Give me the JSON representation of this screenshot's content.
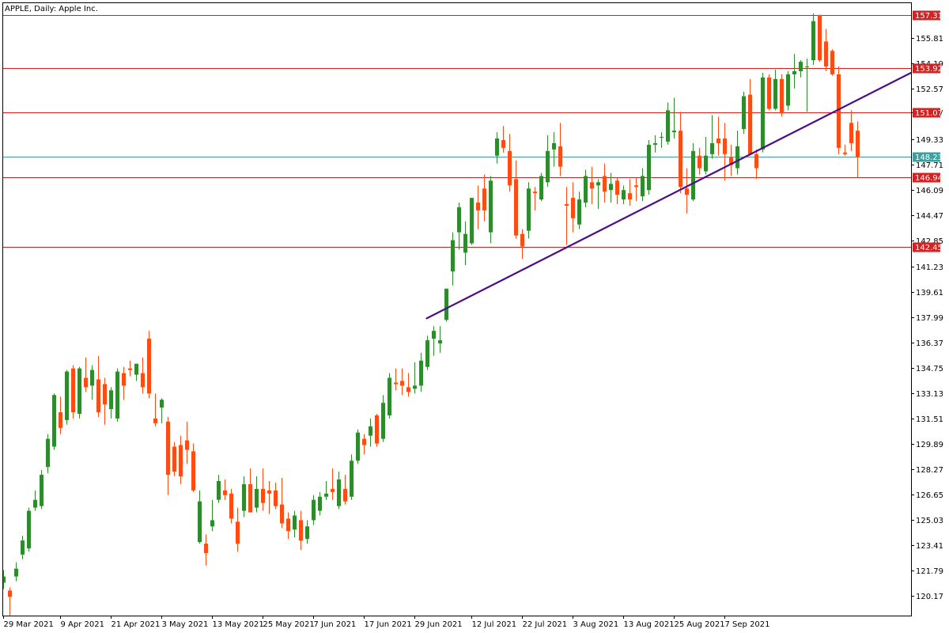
{
  "chart_title": "APPLE, Daily:  Apple Inc.",
  "colors": {
    "bull": "#2e8b2e",
    "bear": "#ff4b14",
    "level": "#d32222",
    "current": "#3f9f9f",
    "trendline": "#4b0f8c",
    "axis": "#000000"
  },
  "chart_data": {
    "type": "candlestick",
    "title": "APPLE, Daily:  Apple Inc.",
    "ylim": [
      118.9,
      158.1
    ],
    "yticks": [
      "155.81",
      "154.19",
      "152.57",
      "151.07",
      "149.33",
      "147.71",
      "146.09",
      "144.47",
      "142.85",
      "141.23",
      "139.61",
      "137.99",
      "136.37",
      "134.75",
      "133.13",
      "131.51",
      "129.89",
      "128.27",
      "126.65",
      "125.03",
      "123.41",
      "121.79",
      "120.17"
    ],
    "xticks": [
      {
        "label": "29 Mar 2021",
        "index": 0
      },
      {
        "label": "9 Apr 2021",
        "index": 9
      },
      {
        "label": "21 Apr 2021",
        "index": 17
      },
      {
        "label": "3 May 2021",
        "index": 25
      },
      {
        "label": "13 May 2021",
        "index": 33
      },
      {
        "label": "25 May 2021",
        "index": 41
      },
      {
        "label": "7 Jun 2021",
        "index": 49
      },
      {
        "label": "17 Jun 2021",
        "index": 57
      },
      {
        "label": "29 Jun 2021",
        "index": 65
      },
      {
        "label": "12 Jul 2021",
        "index": 74
      },
      {
        "label": "22 Jul 2021",
        "index": 82
      },
      {
        "label": "3 Aug 2021",
        "index": 90
      },
      {
        "label": "13 Aug 2021",
        "index": 98
      },
      {
        "label": "25 Aug 2021",
        "index": 106
      },
      {
        "label": "7 Sep 2021",
        "index": 114
      }
    ],
    "levels": [
      {
        "label": "157.31",
        "value": 157.31,
        "kind": "resistance"
      },
      {
        "label": "153.92",
        "value": 153.92,
        "kind": "resistance"
      },
      {
        "label": "151.07",
        "value": 151.07,
        "kind": "resistance"
      },
      {
        "label": "146.94",
        "value": 146.94,
        "kind": "support"
      },
      {
        "label": "142.45",
        "value": 142.45,
        "kind": "support"
      }
    ],
    "current_price": {
      "label": "148.23",
      "value": 148.23
    },
    "trendline": {
      "start": {
        "index": 67,
        "value": 137.9
      },
      "end": {
        "index": 148,
        "value": 153.6
      }
    },
    "candles": [
      {
        "o": 121.0,
        "h": 121.8,
        "l": 120.6,
        "c": 121.4
      },
      {
        "o": 120.5,
        "h": 120.7,
        "l": 118.9,
        "c": 120.1
      },
      {
        "o": 121.4,
        "h": 122.3,
        "l": 121.1,
        "c": 121.9
      },
      {
        "o": 122.8,
        "h": 124.0,
        "l": 122.5,
        "c": 123.7
      },
      {
        "o": 123.2,
        "h": 125.8,
        "l": 123.0,
        "c": 125.6
      },
      {
        "o": 125.8,
        "h": 126.9,
        "l": 125.6,
        "c": 126.3
      },
      {
        "o": 125.9,
        "h": 128.2,
        "l": 125.7,
        "c": 127.9
      },
      {
        "o": 128.4,
        "h": 130.5,
        "l": 128.0,
        "c": 130.2
      },
      {
        "o": 129.7,
        "h": 133.1,
        "l": 129.5,
        "c": 133.0
      },
      {
        "o": 131.9,
        "h": 132.9,
        "l": 130.5,
        "c": 130.9
      },
      {
        "o": 131.4,
        "h": 134.6,
        "l": 131.1,
        "c": 134.5
      },
      {
        "o": 134.7,
        "h": 134.9,
        "l": 131.5,
        "c": 131.9
      },
      {
        "o": 131.8,
        "h": 134.8,
        "l": 131.5,
        "c": 134.7
      },
      {
        "o": 134.1,
        "h": 135.4,
        "l": 133.2,
        "c": 133.5
      },
      {
        "o": 133.6,
        "h": 134.9,
        "l": 132.7,
        "c": 134.6
      },
      {
        "o": 134.0,
        "h": 135.5,
        "l": 131.6,
        "c": 131.9
      },
      {
        "o": 133.7,
        "h": 134.1,
        "l": 131.1,
        "c": 132.4
      },
      {
        "o": 132.1,
        "h": 133.5,
        "l": 131.5,
        "c": 133.3
      },
      {
        "o": 131.5,
        "h": 134.7,
        "l": 131.3,
        "c": 134.5
      },
      {
        "o": 134.4,
        "h": 134.8,
        "l": 132.7,
        "c": 133.6
      },
      {
        "o": 134.7,
        "h": 135.2,
        "l": 134.2,
        "c": 134.6
      },
      {
        "o": 134.3,
        "h": 135.0,
        "l": 133.9,
        "c": 135.0
      },
      {
        "o": 134.4,
        "h": 135.4,
        "l": 133.1,
        "c": 133.5
      },
      {
        "o": 136.6,
        "h": 137.1,
        "l": 132.8,
        "c": 133.1
      },
      {
        "o": 131.5,
        "h": 133.1,
        "l": 131.0,
        "c": 131.2
      },
      {
        "o": 132.2,
        "h": 132.8,
        "l": 131.2,
        "c": 132.7
      },
      {
        "o": 131.3,
        "h": 131.6,
        "l": 126.6,
        "c": 127.9
      },
      {
        "o": 129.7,
        "h": 130.0,
        "l": 127.8,
        "c": 128.1
      },
      {
        "o": 129.8,
        "h": 130.4,
        "l": 127.3,
        "c": 127.8
      },
      {
        "o": 130.1,
        "h": 131.3,
        "l": 128.6,
        "c": 129.5
      },
      {
        "o": 129.4,
        "h": 129.9,
        "l": 126.8,
        "c": 126.9
      },
      {
        "o": 123.6,
        "h": 126.9,
        "l": 123.5,
        "c": 126.2
      },
      {
        "o": 123.5,
        "h": 124.1,
        "l": 122.1,
        "c": 122.9
      },
      {
        "o": 124.6,
        "h": 126.3,
        "l": 124.3,
        "c": 125.0
      },
      {
        "o": 126.3,
        "h": 127.9,
        "l": 126.1,
        "c": 127.5
      },
      {
        "o": 126.9,
        "h": 127.6,
        "l": 126.3,
        "c": 126.6
      },
      {
        "o": 126.7,
        "h": 127.0,
        "l": 124.8,
        "c": 125.1
      },
      {
        "o": 124.9,
        "h": 125.8,
        "l": 123.0,
        "c": 123.5
      },
      {
        "o": 125.6,
        "h": 127.8,
        "l": 125.2,
        "c": 127.3
      },
      {
        "o": 127.3,
        "h": 128.3,
        "l": 125.5,
        "c": 125.5
      },
      {
        "o": 125.8,
        "h": 127.8,
        "l": 125.5,
        "c": 127.0
      },
      {
        "o": 127.0,
        "h": 128.3,
        "l": 125.6,
        "c": 126.1
      },
      {
        "o": 126.9,
        "h": 127.5,
        "l": 125.4,
        "c": 126.7
      },
      {
        "o": 126.9,
        "h": 127.4,
        "l": 125.7,
        "c": 125.9
      },
      {
        "o": 126.0,
        "h": 127.7,
        "l": 124.5,
        "c": 124.8
      },
      {
        "o": 125.1,
        "h": 125.5,
        "l": 123.8,
        "c": 124.3
      },
      {
        "o": 124.4,
        "h": 125.6,
        "l": 123.9,
        "c": 125.3
      },
      {
        "o": 125.0,
        "h": 125.6,
        "l": 123.1,
        "c": 123.7
      },
      {
        "o": 123.8,
        "h": 125.0,
        "l": 123.5,
        "c": 124.6
      },
      {
        "o": 125.0,
        "h": 126.6,
        "l": 124.7,
        "c": 126.3
      },
      {
        "o": 125.6,
        "h": 126.8,
        "l": 125.3,
        "c": 126.5
      },
      {
        "o": 126.5,
        "h": 127.5,
        "l": 126.3,
        "c": 126.7
      },
      {
        "o": 127.0,
        "h": 128.3,
        "l": 126.3,
        "c": 126.8
      },
      {
        "o": 125.9,
        "h": 128.1,
        "l": 125.7,
        "c": 127.6
      },
      {
        "o": 127.0,
        "h": 127.9,
        "l": 126.0,
        "c": 126.2
      },
      {
        "o": 126.5,
        "h": 129.2,
        "l": 126.3,
        "c": 128.8
      },
      {
        "o": 128.8,
        "h": 130.8,
        "l": 128.6,
        "c": 130.6
      },
      {
        "o": 130.2,
        "h": 130.5,
        "l": 129.2,
        "c": 129.8
      },
      {
        "o": 130.4,
        "h": 131.5,
        "l": 129.7,
        "c": 131.0
      },
      {
        "o": 131.7,
        "h": 131.8,
        "l": 129.7,
        "c": 129.9
      },
      {
        "o": 130.2,
        "h": 133.0,
        "l": 130.0,
        "c": 132.5
      },
      {
        "o": 131.7,
        "h": 134.4,
        "l": 131.5,
        "c": 134.1
      },
      {
        "o": 133.8,
        "h": 134.7,
        "l": 133.3,
        "c": 133.7
      },
      {
        "o": 133.9,
        "h": 134.7,
        "l": 133.0,
        "c": 133.6
      },
      {
        "o": 133.5,
        "h": 134.4,
        "l": 132.9,
        "c": 133.2
      },
      {
        "o": 133.4,
        "h": 135.1,
        "l": 133.1,
        "c": 133.6
      },
      {
        "o": 133.6,
        "h": 135.7,
        "l": 133.2,
        "c": 135.2
      },
      {
        "o": 134.8,
        "h": 136.8,
        "l": 134.6,
        "c": 136.5
      },
      {
        "o": 136.6,
        "h": 137.4,
        "l": 135.5,
        "c": 137.1
      },
      {
        "o": 136.3,
        "h": 137.4,
        "l": 135.7,
        "c": 136.5
      },
      {
        "o": 137.8,
        "h": 139.8,
        "l": 137.7,
        "c": 139.8
      },
      {
        "o": 140.9,
        "h": 143.4,
        "l": 140.0,
        "c": 142.9
      },
      {
        "o": 143.4,
        "h": 145.3,
        "l": 142.3,
        "c": 145.0
      },
      {
        "o": 142.1,
        "h": 144.1,
        "l": 141.3,
        "c": 143.3
      },
      {
        "o": 142.7,
        "h": 145.6,
        "l": 142.6,
        "c": 145.6
      },
      {
        "o": 145.3,
        "h": 146.4,
        "l": 143.6,
        "c": 144.8
      },
      {
        "o": 146.2,
        "h": 147.1,
        "l": 144.1,
        "c": 144.8
      },
      {
        "o": 143.4,
        "h": 147.0,
        "l": 142.7,
        "c": 146.7
      },
      {
        "o": 148.3,
        "h": 149.8,
        "l": 147.8,
        "c": 149.4
      },
      {
        "o": 149.3,
        "h": 150.2,
        "l": 148.5,
        "c": 148.8
      },
      {
        "o": 148.6,
        "h": 149.7,
        "l": 146.0,
        "c": 146.4
      },
      {
        "o": 146.8,
        "h": 148.0,
        "l": 143.0,
        "c": 143.2
      },
      {
        "o": 143.3,
        "h": 143.6,
        "l": 141.7,
        "c": 142.5
      },
      {
        "o": 143.5,
        "h": 146.6,
        "l": 143.0,
        "c": 146.2
      },
      {
        "o": 146.0,
        "h": 146.3,
        "l": 144.8,
        "c": 145.9
      },
      {
        "o": 145.5,
        "h": 147.2,
        "l": 145.4,
        "c": 147.0
      },
      {
        "o": 146.6,
        "h": 149.6,
        "l": 146.3,
        "c": 148.6
      },
      {
        "o": 148.7,
        "h": 149.8,
        "l": 147.6,
        "c": 149.1
      },
      {
        "o": 148.9,
        "h": 150.4,
        "l": 147.0,
        "c": 147.6
      },
      {
        "o": 145.2,
        "h": 146.3,
        "l": 142.6,
        "c": 145.1
      },
      {
        "o": 145.6,
        "h": 146.6,
        "l": 143.4,
        "c": 144.3
      },
      {
        "o": 143.9,
        "h": 146.0,
        "l": 143.6,
        "c": 145.5
      },
      {
        "o": 145.3,
        "h": 147.4,
        "l": 145.0,
        "c": 147.0
      },
      {
        "o": 146.6,
        "h": 147.6,
        "l": 145.2,
        "c": 146.2
      },
      {
        "o": 146.4,
        "h": 146.8,
        "l": 144.9,
        "c": 146.6
      },
      {
        "o": 147.0,
        "h": 147.8,
        "l": 145.3,
        "c": 146.0
      },
      {
        "o": 146.1,
        "h": 147.2,
        "l": 145.3,
        "c": 146.5
      },
      {
        "o": 146.7,
        "h": 146.9,
        "l": 145.2,
        "c": 145.8
      },
      {
        "o": 145.5,
        "h": 146.4,
        "l": 145.2,
        "c": 146.1
      },
      {
        "o": 145.9,
        "h": 146.8,
        "l": 145.1,
        "c": 145.5
      },
      {
        "o": 146.4,
        "h": 146.9,
        "l": 145.4,
        "c": 146.3
      },
      {
        "o": 145.7,
        "h": 147.5,
        "l": 145.4,
        "c": 147.0
      },
      {
        "o": 146.1,
        "h": 149.3,
        "l": 145.8,
        "c": 149.0
      },
      {
        "o": 149.0,
        "h": 149.6,
        "l": 148.5,
        "c": 149.1
      },
      {
        "o": 149.5,
        "h": 149.8,
        "l": 148.8,
        "c": 149.5
      },
      {
        "o": 149.2,
        "h": 151.7,
        "l": 149.0,
        "c": 151.2
      },
      {
        "o": 149.8,
        "h": 152.0,
        "l": 149.4,
        "c": 149.9
      },
      {
        "o": 149.9,
        "h": 151.1,
        "l": 145.9,
        "c": 146.3
      },
      {
        "o": 146.2,
        "h": 147.5,
        "l": 144.6,
        "c": 145.8
      },
      {
        "o": 145.5,
        "h": 149.1,
        "l": 145.4,
        "c": 148.6
      },
      {
        "o": 148.3,
        "h": 148.8,
        "l": 147.1,
        "c": 147.5
      },
      {
        "o": 147.3,
        "h": 149.5,
        "l": 147.1,
        "c": 148.3
      },
      {
        "o": 148.4,
        "h": 150.9,
        "l": 148.1,
        "c": 149.1
      },
      {
        "o": 149.4,
        "h": 150.8,
        "l": 148.3,
        "c": 149.1
      },
      {
        "o": 149.4,
        "h": 150.4,
        "l": 146.7,
        "c": 148.4
      },
      {
        "o": 148.2,
        "h": 149.0,
        "l": 147.0,
        "c": 147.7
      },
      {
        "o": 147.5,
        "h": 149.9,
        "l": 147.1,
        "c": 148.9
      },
      {
        "o": 150.0,
        "h": 152.4,
        "l": 149.7,
        "c": 152.1
      },
      {
        "o": 152.2,
        "h": 153.2,
        "l": 148.3,
        "c": 148.4
      },
      {
        "o": 148.4,
        "h": 148.7,
        "l": 146.8,
        "c": 147.5
      },
      {
        "o": 148.7,
        "h": 153.6,
        "l": 148.5,
        "c": 153.3
      },
      {
        "o": 153.3,
        "h": 153.5,
        "l": 151.2,
        "c": 151.3
      },
      {
        "o": 151.3,
        "h": 153.8,
        "l": 151.2,
        "c": 153.2
      },
      {
        "o": 153.2,
        "h": 153.5,
        "l": 150.8,
        "c": 151.0
      },
      {
        "o": 151.5,
        "h": 153.7,
        "l": 151.2,
        "c": 153.5
      },
      {
        "o": 153.5,
        "h": 154.8,
        "l": 152.6,
        "c": 153.7
      },
      {
        "o": 153.7,
        "h": 154.4,
        "l": 153.3,
        "c": 154.3
      },
      {
        "o": 154.0,
        "h": 154.5,
        "l": 151.1,
        "c": 154.0
      },
      {
        "o": 154.4,
        "h": 157.4,
        "l": 154.1,
        "c": 156.9
      },
      {
        "o": 157.3,
        "h": 157.3,
        "l": 154.3,
        "c": 154.4
      },
      {
        "o": 155.6,
        "h": 156.4,
        "l": 153.7,
        "c": 154.0
      },
      {
        "o": 155.0,
        "h": 155.1,
        "l": 153.4,
        "c": 153.5
      },
      {
        "o": 153.5,
        "h": 154.0,
        "l": 148.4,
        "c": 148.8
      },
      {
        "o": 148.5,
        "h": 149.0,
        "l": 148.3,
        "c": 148.4
      },
      {
        "o": 150.4,
        "h": 151.2,
        "l": 148.6,
        "c": 149.1
      },
      {
        "o": 149.9,
        "h": 150.5,
        "l": 146.9,
        "c": 148.2
      }
    ]
  }
}
